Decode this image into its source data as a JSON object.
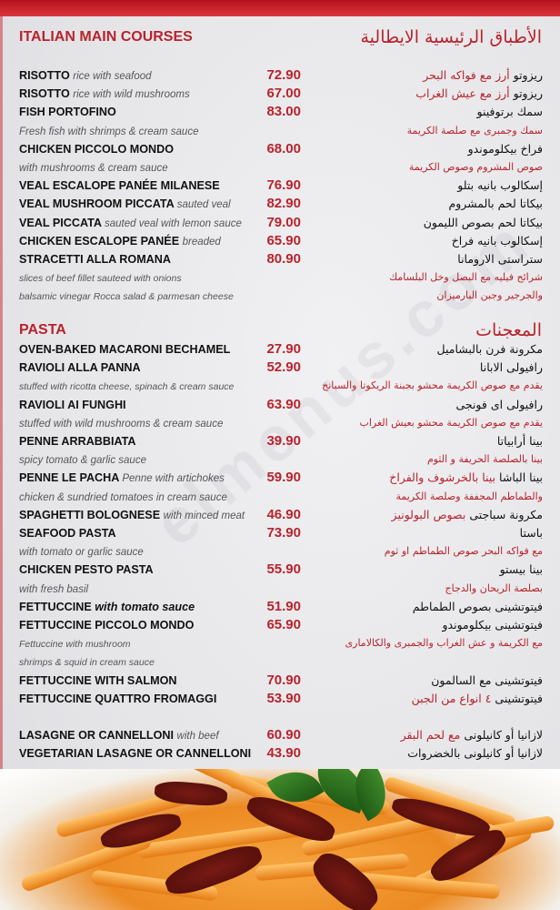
{
  "colors": {
    "accent": "#b8232c",
    "text": "#111111",
    "description": "#555555"
  },
  "watermark": "elmenus.com",
  "sections": [
    {
      "title_en": "ITALIAN MAIN COURSES",
      "title_ar": "الأطباق الرئيسية الايطالية",
      "rows": [
        {
          "type": "item",
          "en": "RISOTTO",
          "en_sub": "rice with seafood",
          "price": "72.90",
          "ar": "ريزوتو",
          "ar_sub": "أرز مع فواكه البحر"
        },
        {
          "type": "item",
          "en": "RISOTTO",
          "en_sub": "rice with wild mushrooms",
          "price": "67.00",
          "ar": "ريزوتو",
          "ar_sub": "أرز مع عيش الغراب"
        },
        {
          "type": "item",
          "en": "FISH PORTOFINO",
          "price": "83.00",
          "ar": "سمك برتوفينو"
        },
        {
          "type": "desc",
          "en": "Fresh fish with shrimps & cream sauce",
          "ar": "سمك وجمبرى مع صلصة الكريمة"
        },
        {
          "type": "item",
          "en": "CHICKEN PICCOLO MONDO",
          "price": "68.00",
          "ar": "فراخ بيكلوموندو"
        },
        {
          "type": "desc",
          "en": "with mushrooms & cream sauce",
          "ar": "صوص المشروم وصوص الكريمة"
        },
        {
          "type": "item",
          "en": "VEAL ESCALOPE PANÉE MILANESE",
          "price": "76.90",
          "ar": "إسكالوب بانيه بتلو"
        },
        {
          "type": "item",
          "en": "VEAL MUSHROOM PICCATA",
          "en_sub": "sauted veal",
          "price": "82.90",
          "ar": "بيكاتا لحم بالمشروم"
        },
        {
          "type": "item",
          "en": "VEAL PICCATA",
          "en_sub": "sauted veal with lemon sauce",
          "price": "79.00",
          "ar": "بيكاتا لحم بصوص الليمون"
        },
        {
          "type": "item",
          "en": "CHICKEN ESCALOPE PANÉE",
          "en_sub": "breaded",
          "price": "65.90",
          "ar": "إسكالوب بانيه فراخ"
        },
        {
          "type": "item",
          "en": "STRACETTI ALLA ROMANA",
          "price": "80.90",
          "ar": "ستراستى الارومانا"
        },
        {
          "type": "desc",
          "small": true,
          "en": "slices of beef fillet sauteed with onions",
          "ar": "شرائح فيليه مع البصل وخل البلسامك"
        },
        {
          "type": "desc",
          "small": true,
          "en": "balsamic vinegar Rocca salad & parmesan cheese",
          "ar": "والجرجير وجبن البارميزان"
        }
      ]
    },
    {
      "title_en": "PASTA",
      "title_ar": "المعجنات",
      "rows": [
        {
          "type": "item",
          "en": "OVEN-BAKED MACARONI BECHAMEL",
          "price": "27.90",
          "ar": "مكرونة فرن بالبشاميل"
        },
        {
          "type": "item",
          "en": "RAVIOLI ALLA PANNA",
          "price": "52.90",
          "ar": "رافيولى الابانا"
        },
        {
          "type": "desc",
          "small": true,
          "en": "stuffed with ricotta cheese, spinach & cream sauce",
          "ar": "يقدم مع صوص الكريمة محشو بجبنة الريكوتا والسبانخ"
        },
        {
          "type": "item",
          "en": "RAVIOLI AI FUNGHI",
          "price": "63.90",
          "ar": "رافيولى اى فونجى"
        },
        {
          "type": "desc",
          "en": "stuffed with wild mushrooms & cream sauce",
          "ar": "يقدم مع صوص الكريمة محشو بعيش الغراب"
        },
        {
          "type": "item",
          "en": "PENNE ARRABBIATA",
          "price": "39.90",
          "ar": "بينا أرابياتا"
        },
        {
          "type": "desc",
          "en": "spicy tomato & garlic sauce",
          "ar": "بينا بالصلصة الحريفة و الثوم"
        },
        {
          "type": "item",
          "en": "PENNE LE PACHA",
          "en_sub": "Penne with artichokes",
          "price": "59.90",
          "ar": "بينا الباشا",
          "ar_sub": "بينا بالخرشوف والفراخ"
        },
        {
          "type": "desc",
          "en": "chicken & sundried tomatoes in cream sauce",
          "ar": "والطماطم المجففة وصلصة الكريمة"
        },
        {
          "type": "item",
          "en": "SPAGHETTI BOLOGNESE",
          "en_sub": "with minced meat",
          "price": "46.90",
          "ar": "مكرونة سباجتى",
          "ar_sub": "بصوص البولونيز"
        },
        {
          "type": "item",
          "en": "SEAFOOD PASTA",
          "price": "73.90",
          "ar": "باستا"
        },
        {
          "type": "desc",
          "en": "with tomato or garlic sauce",
          "ar": "مع فواكه البحر صوص الطماطم او ثوم"
        },
        {
          "type": "item",
          "en": "CHICKEN PESTO PASTA",
          "price": "55.90",
          "ar": "بينا بيستو"
        },
        {
          "type": "desc",
          "en": "with fresh basil",
          "ar": "بصلصة الريحان والدجاج"
        },
        {
          "type": "item",
          "fi": true,
          "en": "FETTUCCINE",
          "en_sub": "with tomato sauce",
          "price": "51.90",
          "ar": "فيتوتشينى بصوص الطماطم"
        },
        {
          "type": "item",
          "en": "FETTUCCINE PICCOLO MONDO",
          "price": "65.90",
          "ar": "فيتوتشينى بيكلوموندو"
        },
        {
          "type": "desc",
          "small": true,
          "en": "Fettuccine with mushroom",
          "ar": "مع الكريمة و عش الغراب والجمبرى والكالامارى"
        },
        {
          "type": "desc",
          "small": true,
          "en": " shrimps & squid in cream sauce"
        },
        {
          "type": "item",
          "en": "FETTUCCINE WITH SALMON",
          "price": "70.90",
          "ar": "فيتوتشينى مع السالمون"
        },
        {
          "type": "item",
          "en": "FETTUCCINE QUATTRO FROMAGGI",
          "price": "53.90",
          "ar": "فيتوتشينى",
          "ar_sub": "٤ انواع من الجبن"
        },
        {
          "type": "spacer"
        },
        {
          "type": "item",
          "en": "LASAGNE OR CANNELLONI",
          "en_sub": "with beef",
          "price": "60.90",
          "ar": "لازانيا أو كانيلونى",
          "ar_sub": "مع لحم البقر"
        },
        {
          "type": "item",
          "en": "VEGETARIAN LASAGNE OR CANNELLONI",
          "price": "43.90",
          "ar": "لازانيا أو كانيلونى بالخضروات"
        }
      ]
    }
  ]
}
